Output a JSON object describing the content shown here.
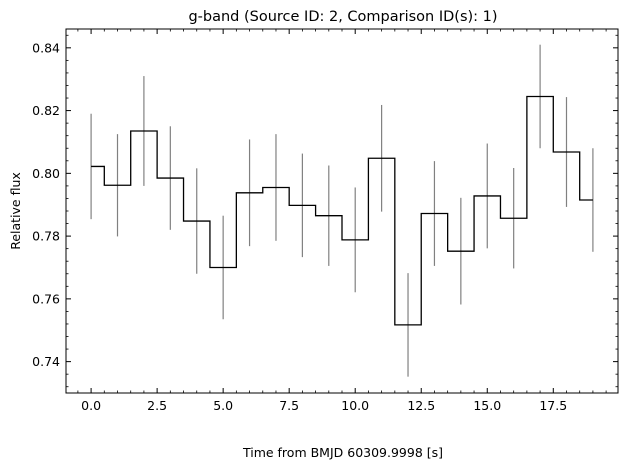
{
  "chart_data": {
    "type": "line",
    "title": "g-band (Source ID: 2, Comparison ID(s): 1)",
    "xlabel": "Time from BMJD 60309.9998 [s]",
    "ylabel": "Relative flux",
    "xlim": [
      -0.95,
      19.95
    ],
    "ylim": [
      0.73,
      0.846
    ],
    "x_ticks": [
      0.0,
      2.5,
      5.0,
      7.5,
      10.0,
      12.5,
      15.0,
      17.5
    ],
    "x_tick_labels": [
      "0.0",
      "2.5",
      "5.0",
      "7.5",
      "10.0",
      "12.5",
      "15.0",
      "17.5"
    ],
    "y_ticks": [
      0.74,
      0.76,
      0.78,
      0.8,
      0.82,
      0.84
    ],
    "y_tick_labels": [
      "0.74",
      "0.76",
      "0.78",
      "0.80",
      "0.82",
      "0.84"
    ],
    "step_style": "mid",
    "grid": false,
    "series": [
      {
        "line_color": "#000000",
        "errorbar_color": "#808080",
        "x": [
          0,
          1,
          2,
          3,
          4,
          5,
          6,
          7,
          8,
          9,
          10,
          11,
          12,
          13,
          14,
          15,
          16,
          17,
          18,
          19
        ],
        "y": [
          0.8022,
          0.7962,
          0.8135,
          0.7985,
          0.7848,
          0.77,
          0.7938,
          0.7955,
          0.7898,
          0.7865,
          0.7788,
          0.8048,
          0.7517,
          0.7872,
          0.7752,
          0.7928,
          0.7857,
          0.8245,
          0.8068,
          0.7915
        ],
        "yerr": [
          0.0168,
          0.0163,
          0.0175,
          0.0165,
          0.0168,
          0.0165,
          0.017,
          0.017,
          0.0165,
          0.016,
          0.0167,
          0.017,
          0.0165,
          0.0167,
          0.017,
          0.0167,
          0.016,
          0.0165,
          0.0175,
          0.0165
        ]
      }
    ]
  }
}
